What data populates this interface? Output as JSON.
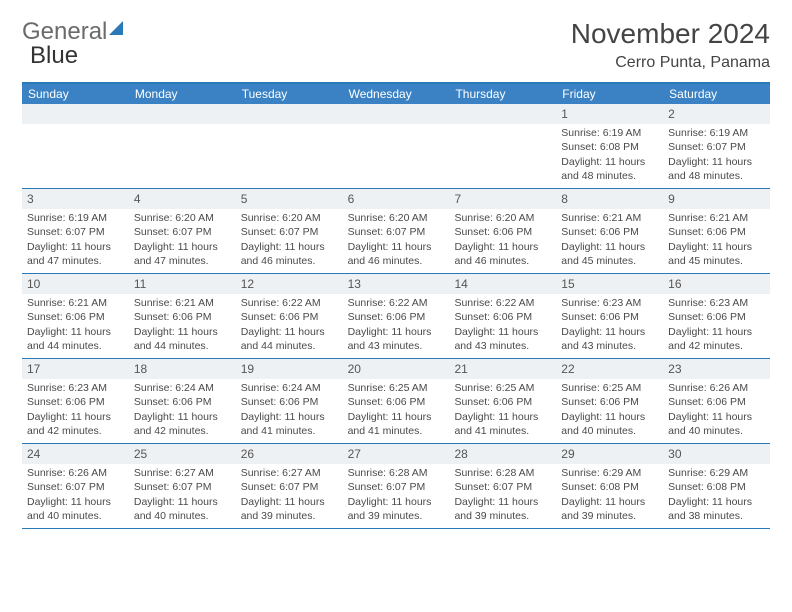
{
  "brand": {
    "word1": "General",
    "word2": "Blue"
  },
  "title": "November 2024",
  "location": "Cerro Punta, Panama",
  "colors": {
    "header_bg": "#3b82c4",
    "rule": "#2a7ab8",
    "daynum_bg": "#eef1f3",
    "text": "#4a4a4a"
  },
  "day_names": [
    "Sunday",
    "Monday",
    "Tuesday",
    "Wednesday",
    "Thursday",
    "Friday",
    "Saturday"
  ],
  "weeks": [
    [
      null,
      null,
      null,
      null,
      null,
      {
        "n": "1",
        "sunrise": "6:19 AM",
        "sunset": "6:08 PM",
        "day_h": 11,
        "day_m": 48
      },
      {
        "n": "2",
        "sunrise": "6:19 AM",
        "sunset": "6:07 PM",
        "day_h": 11,
        "day_m": 48
      }
    ],
    [
      {
        "n": "3",
        "sunrise": "6:19 AM",
        "sunset": "6:07 PM",
        "day_h": 11,
        "day_m": 47
      },
      {
        "n": "4",
        "sunrise": "6:20 AM",
        "sunset": "6:07 PM",
        "day_h": 11,
        "day_m": 47
      },
      {
        "n": "5",
        "sunrise": "6:20 AM",
        "sunset": "6:07 PM",
        "day_h": 11,
        "day_m": 46
      },
      {
        "n": "6",
        "sunrise": "6:20 AM",
        "sunset": "6:07 PM",
        "day_h": 11,
        "day_m": 46
      },
      {
        "n": "7",
        "sunrise": "6:20 AM",
        "sunset": "6:06 PM",
        "day_h": 11,
        "day_m": 46
      },
      {
        "n": "8",
        "sunrise": "6:21 AM",
        "sunset": "6:06 PM",
        "day_h": 11,
        "day_m": 45
      },
      {
        "n": "9",
        "sunrise": "6:21 AM",
        "sunset": "6:06 PM",
        "day_h": 11,
        "day_m": 45
      }
    ],
    [
      {
        "n": "10",
        "sunrise": "6:21 AM",
        "sunset": "6:06 PM",
        "day_h": 11,
        "day_m": 44
      },
      {
        "n": "11",
        "sunrise": "6:21 AM",
        "sunset": "6:06 PM",
        "day_h": 11,
        "day_m": 44
      },
      {
        "n": "12",
        "sunrise": "6:22 AM",
        "sunset": "6:06 PM",
        "day_h": 11,
        "day_m": 44
      },
      {
        "n": "13",
        "sunrise": "6:22 AM",
        "sunset": "6:06 PM",
        "day_h": 11,
        "day_m": 43
      },
      {
        "n": "14",
        "sunrise": "6:22 AM",
        "sunset": "6:06 PM",
        "day_h": 11,
        "day_m": 43
      },
      {
        "n": "15",
        "sunrise": "6:23 AM",
        "sunset": "6:06 PM",
        "day_h": 11,
        "day_m": 43
      },
      {
        "n": "16",
        "sunrise": "6:23 AM",
        "sunset": "6:06 PM",
        "day_h": 11,
        "day_m": 42
      }
    ],
    [
      {
        "n": "17",
        "sunrise": "6:23 AM",
        "sunset": "6:06 PM",
        "day_h": 11,
        "day_m": 42
      },
      {
        "n": "18",
        "sunrise": "6:24 AM",
        "sunset": "6:06 PM",
        "day_h": 11,
        "day_m": 42
      },
      {
        "n": "19",
        "sunrise": "6:24 AM",
        "sunset": "6:06 PM",
        "day_h": 11,
        "day_m": 41
      },
      {
        "n": "20",
        "sunrise": "6:25 AM",
        "sunset": "6:06 PM",
        "day_h": 11,
        "day_m": 41
      },
      {
        "n": "21",
        "sunrise": "6:25 AM",
        "sunset": "6:06 PM",
        "day_h": 11,
        "day_m": 41
      },
      {
        "n": "22",
        "sunrise": "6:25 AM",
        "sunset": "6:06 PM",
        "day_h": 11,
        "day_m": 40
      },
      {
        "n": "23",
        "sunrise": "6:26 AM",
        "sunset": "6:06 PM",
        "day_h": 11,
        "day_m": 40
      }
    ],
    [
      {
        "n": "24",
        "sunrise": "6:26 AM",
        "sunset": "6:07 PM",
        "day_h": 11,
        "day_m": 40
      },
      {
        "n": "25",
        "sunrise": "6:27 AM",
        "sunset": "6:07 PM",
        "day_h": 11,
        "day_m": 40
      },
      {
        "n": "26",
        "sunrise": "6:27 AM",
        "sunset": "6:07 PM",
        "day_h": 11,
        "day_m": 39
      },
      {
        "n": "27",
        "sunrise": "6:28 AM",
        "sunset": "6:07 PM",
        "day_h": 11,
        "day_m": 39
      },
      {
        "n": "28",
        "sunrise": "6:28 AM",
        "sunset": "6:07 PM",
        "day_h": 11,
        "day_m": 39
      },
      {
        "n": "29",
        "sunrise": "6:29 AM",
        "sunset": "6:08 PM",
        "day_h": 11,
        "day_m": 39
      },
      {
        "n": "30",
        "sunrise": "6:29 AM",
        "sunset": "6:08 PM",
        "day_h": 11,
        "day_m": 38
      }
    ]
  ],
  "labels": {
    "sunrise_prefix": "Sunrise: ",
    "sunset_prefix": "Sunset: ",
    "daylight_prefix": "Daylight: ",
    "hours_word": " hours",
    "and_word": "and ",
    "minutes_word": " minutes."
  }
}
